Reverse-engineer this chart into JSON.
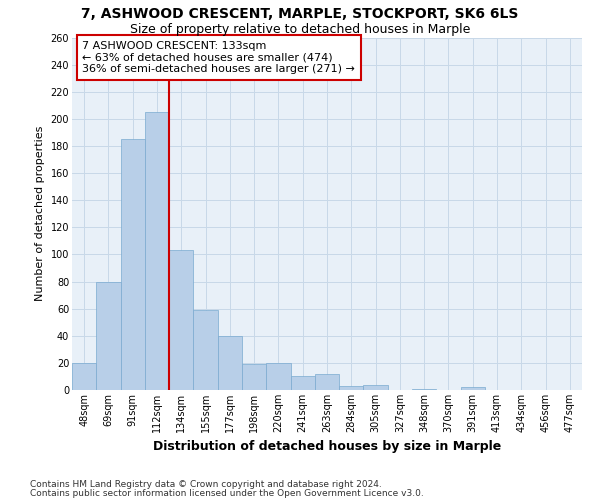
{
  "title1": "7, ASHWOOD CRESCENT, MARPLE, STOCKPORT, SK6 6LS",
  "title2": "Size of property relative to detached houses in Marple",
  "xlabel": "Distribution of detached houses by size in Marple",
  "ylabel": "Number of detached properties",
  "bar_values": [
    20,
    80,
    185,
    205,
    103,
    59,
    40,
    19,
    20,
    10,
    12,
    3,
    4,
    0,
    1,
    0,
    2,
    0,
    0,
    0,
    0
  ],
  "bin_labels": [
    "48sqm",
    "69sqm",
    "91sqm",
    "112sqm",
    "134sqm",
    "155sqm",
    "177sqm",
    "198sqm",
    "220sqm",
    "241sqm",
    "263sqm",
    "284sqm",
    "305sqm",
    "327sqm",
    "348sqm",
    "370sqm",
    "391sqm",
    "413sqm",
    "434sqm",
    "456sqm",
    "477sqm"
  ],
  "bar_color": "#b8cfe8",
  "bar_edge_color": "#7aaad0",
  "red_line_col_idx": 4,
  "red_line_color": "#cc0000",
  "annotation_text": "7 ASHWOOD CRESCENT: 133sqm\n← 63% of detached houses are smaller (474)\n36% of semi-detached houses are larger (271) →",
  "annotation_box_facecolor": "#ffffff",
  "annotation_box_edgecolor": "#cc0000",
  "ylim": [
    0,
    260
  ],
  "yticks": [
    0,
    20,
    40,
    60,
    80,
    100,
    120,
    140,
    160,
    180,
    200,
    220,
    240,
    260
  ],
  "grid_color": "#c8d8e8",
  "bg_color": "#e8f0f8",
  "footer1": "Contains HM Land Registry data © Crown copyright and database right 2024.",
  "footer2": "Contains public sector information licensed under the Open Government Licence v3.0.",
  "title1_fontsize": 10,
  "title2_fontsize": 9,
  "xlabel_fontsize": 9,
  "ylabel_fontsize": 8,
  "tick_fontsize": 7,
  "annotation_fontsize": 8,
  "footer_fontsize": 6.5
}
